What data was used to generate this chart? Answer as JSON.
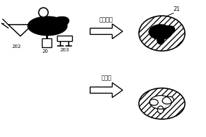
{
  "background_color": "#ffffff",
  "hatch_pattern": "////",
  "label_21": "21",
  "label_20": "20",
  "label_202": "202",
  "label_203": "203",
  "text_top": "聚合反应",
  "text_bottom": "戜去除",
  "figsize": [
    3.0,
    2.0
  ],
  "dpi": 100
}
